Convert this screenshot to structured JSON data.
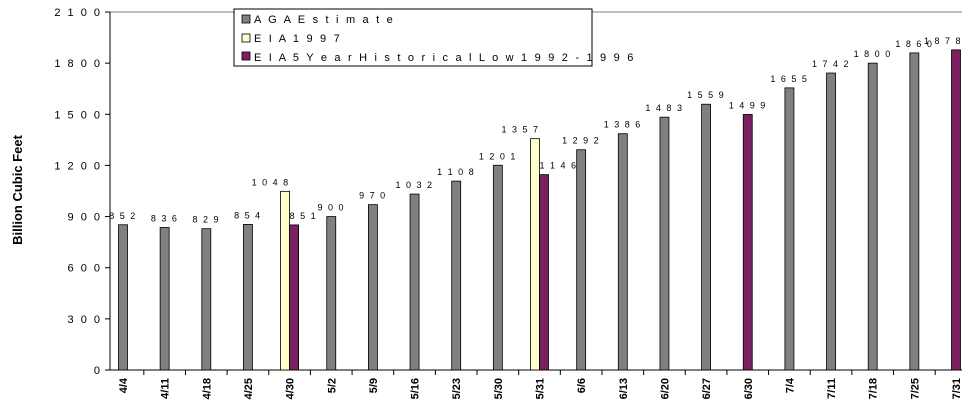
{
  "chart_data": {
    "type": "bar",
    "ylabel": "Billion Cubic Feet",
    "xlabel": "",
    "ylim": [
      0,
      2100
    ],
    "yticks": [
      "0",
      "3 0 0",
      "6 0 0",
      "9 0 0",
      "1 2 0 0",
      "1 5 0 0",
      "1 8 0 0",
      "2 1 0 0"
    ],
    "ytick_values": [
      0,
      300,
      600,
      900,
      1200,
      1500,
      1800,
      2100
    ],
    "categories": [
      "4/4",
      "4/11",
      "4/18",
      "4/25",
      "4/30",
      "5/2",
      "5/9",
      "5/16",
      "5/23",
      "5/30",
      "5/31",
      "6/6",
      "6/13",
      "6/20",
      "6/27",
      "6/30",
      "7/4",
      "7/11",
      "7/18",
      "7/25",
      "7/31"
    ],
    "grid": false,
    "legend_position": "top-left",
    "series": [
      {
        "name": "A G A  E s t i m a t e",
        "color": "#808080",
        "values": [
          852,
          836,
          829,
          854,
          null,
          900,
          970,
          1032,
          1108,
          1201,
          null,
          1292,
          1386,
          1483,
          1559,
          null,
          1655,
          1742,
          1800,
          1860,
          null
        ],
        "labels": [
          "8 5 2",
          "8 3 6",
          "8 2 9",
          "8 5 4",
          null,
          "9 0 0",
          "9 7 0",
          "1 0 3 2",
          "1 1 0 8",
          "1 2 0 1",
          null,
          "1 2 9 2",
          "1 3 8 6",
          "1 4 8 3",
          "1 5 5 9",
          null,
          "1 6 5 5",
          "1 7 4 2",
          "1 8 0 0",
          "1 8 6 0",
          null
        ]
      },
      {
        "name": "E I A  1 9 9 7",
        "color": "#ffffcc",
        "values": [
          null,
          null,
          null,
          null,
          1048,
          null,
          null,
          null,
          null,
          null,
          1357,
          null,
          null,
          null,
          null,
          null,
          null,
          null,
          null,
          null,
          null
        ],
        "labels": [
          null,
          null,
          null,
          null,
          "1 0 4 8",
          null,
          null,
          null,
          null,
          null,
          "1 3 5 7",
          null,
          null,
          null,
          null,
          null,
          null,
          null,
          null,
          null,
          null
        ]
      },
      {
        "name": "E I A  5  Y e a r  H i s t o r i c a l  L o w  1 9 9 2 - 1 9 9 6",
        "color": "#7b2162",
        "values": [
          null,
          null,
          null,
          null,
          851,
          null,
          null,
          null,
          null,
          null,
          1146,
          null,
          null,
          null,
          null,
          1499,
          null,
          null,
          null,
          null,
          1878
        ],
        "labels": [
          null,
          null,
          null,
          null,
          "8 5 1",
          null,
          null,
          null,
          null,
          null,
          "1 1 4 6",
          null,
          null,
          null,
          null,
          "1 4 9 9",
          null,
          null,
          null,
          null,
          "1 8 7 8"
        ]
      }
    ]
  }
}
